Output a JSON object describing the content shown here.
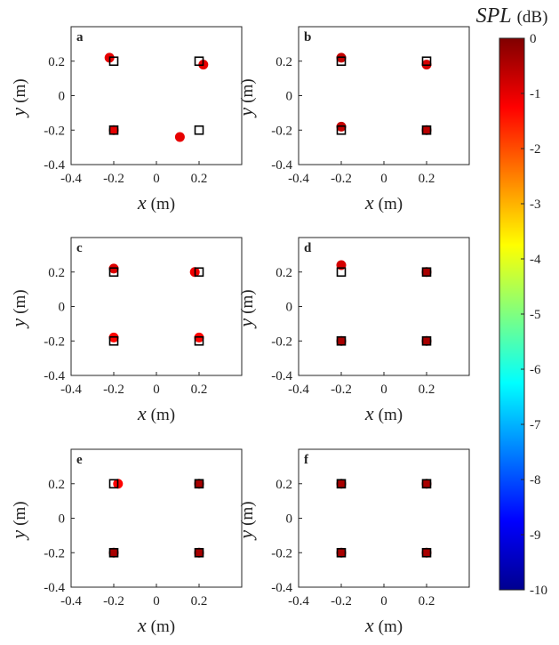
{
  "chart_data": {
    "type": "scatter",
    "panels": [
      {
        "label": "a",
        "xlabel": "x",
        "xunit": "(m)",
        "ylabel": "y",
        "yunit": "(m)",
        "xlim": [
          -0.4,
          0.4
        ],
        "ylim": [
          -0.4,
          0.4
        ],
        "xticks": [
          -0.4,
          -0.2,
          0,
          0.2
        ],
        "yticks": [
          -0.4,
          -0.2,
          0,
          0.2
        ],
        "squares": [
          [
            -0.2,
            0.2
          ],
          [
            0.2,
            0.2
          ],
          [
            -0.2,
            -0.2
          ],
          [
            0.2,
            -0.2
          ]
        ],
        "circles": [
          {
            "x": -0.22,
            "y": 0.22,
            "spl": -0.7
          },
          {
            "x": 0.22,
            "y": 0.18,
            "spl": -0.7
          },
          {
            "x": -0.2,
            "y": -0.2,
            "spl": -0.7
          },
          {
            "x": 0.11,
            "y": -0.24,
            "spl": -0.7
          }
        ]
      },
      {
        "label": "b",
        "xlabel": "x",
        "xunit": "(m)",
        "ylabel": "y",
        "yunit": "(m)",
        "xlim": [
          -0.4,
          0.4
        ],
        "ylim": [
          -0.4,
          0.4
        ],
        "xticks": [
          -0.4,
          -0.2,
          0,
          0.2
        ],
        "yticks": [
          -0.4,
          -0.2,
          0,
          0.2
        ],
        "squares": [
          [
            -0.2,
            0.2
          ],
          [
            0.2,
            0.2
          ],
          [
            -0.2,
            -0.2
          ],
          [
            0.2,
            -0.2
          ]
        ],
        "circles": [
          {
            "x": -0.2,
            "y": 0.22,
            "spl": -0.3
          },
          {
            "x": 0.2,
            "y": 0.18,
            "spl": -0.5
          },
          {
            "x": -0.2,
            "y": -0.18,
            "spl": -0.3
          },
          {
            "x": 0.2,
            "y": -0.2,
            "spl": -0.2
          }
        ]
      },
      {
        "label": "c",
        "xlabel": "x",
        "xunit": "(m)",
        "ylabel": "y",
        "yunit": "(m)",
        "xlim": [
          -0.4,
          0.4
        ],
        "ylim": [
          -0.4,
          0.4
        ],
        "xticks": [
          -0.4,
          -0.2,
          0,
          0.2
        ],
        "yticks": [
          -0.4,
          -0.2,
          0,
          0.2
        ],
        "squares": [
          [
            -0.2,
            0.2
          ],
          [
            0.2,
            0.2
          ],
          [
            -0.2,
            -0.2
          ],
          [
            0.2,
            -0.2
          ]
        ],
        "circles": [
          {
            "x": -0.2,
            "y": 0.22,
            "spl": -0.6
          },
          {
            "x": 0.18,
            "y": 0.2,
            "spl": -0.8
          },
          {
            "x": -0.2,
            "y": -0.18,
            "spl": -1.0
          },
          {
            "x": 0.2,
            "y": -0.18,
            "spl": -1.0
          }
        ]
      },
      {
        "label": "d",
        "xlabel": "x",
        "xunit": "(m)",
        "ylabel": "y",
        "yunit": "(m)",
        "xlim": [
          -0.4,
          0.4
        ],
        "ylim": [
          -0.4,
          0.4
        ],
        "xticks": [
          -0.4,
          -0.2,
          0,
          0.2
        ],
        "yticks": [
          -0.4,
          -0.2,
          0,
          0.2
        ],
        "squares": [
          [
            -0.2,
            0.2
          ],
          [
            0.2,
            0.2
          ],
          [
            -0.2,
            -0.2
          ],
          [
            0.2,
            -0.2
          ]
        ],
        "circles": [
          {
            "x": -0.2,
            "y": 0.24,
            "spl": -0.5
          },
          {
            "x": 0.2,
            "y": 0.2,
            "spl": 0
          },
          {
            "x": -0.2,
            "y": -0.2,
            "spl": 0
          },
          {
            "x": 0.2,
            "y": -0.2,
            "spl": 0
          }
        ]
      },
      {
        "label": "e",
        "xlabel": "x",
        "xunit": "(m)",
        "ylabel": "y",
        "yunit": "(m)",
        "xlim": [
          -0.4,
          0.4
        ],
        "ylim": [
          -0.4,
          0.4
        ],
        "xticks": [
          -0.4,
          -0.2,
          0,
          0.2
        ],
        "yticks": [
          -0.4,
          -0.2,
          0,
          0.2
        ],
        "squares": [
          [
            -0.2,
            0.2
          ],
          [
            0.2,
            0.2
          ],
          [
            -0.2,
            -0.2
          ],
          [
            0.2,
            -0.2
          ]
        ],
        "circles": [
          {
            "x": -0.18,
            "y": 0.2,
            "spl": -1.0
          },
          {
            "x": 0.2,
            "y": 0.2,
            "spl": 0
          },
          {
            "x": -0.2,
            "y": -0.2,
            "spl": 0
          },
          {
            "x": 0.2,
            "y": -0.2,
            "spl": 0
          }
        ]
      },
      {
        "label": "f",
        "xlabel": "x",
        "xunit": "(m)",
        "ylabel": "y",
        "yunit": "(m)",
        "xlim": [
          -0.4,
          0.4
        ],
        "ylim": [
          -0.4,
          0.4
        ],
        "xticks": [
          -0.4,
          -0.2,
          0,
          0.2
        ],
        "yticks": [
          -0.4,
          -0.2,
          0,
          0.2
        ],
        "squares": [
          [
            -0.2,
            0.2
          ],
          [
            0.2,
            0.2
          ],
          [
            -0.2,
            -0.2
          ],
          [
            0.2,
            -0.2
          ]
        ],
        "circles": [
          {
            "x": -0.2,
            "y": 0.2,
            "spl": 0
          },
          {
            "x": 0.2,
            "y": 0.2,
            "spl": 0
          },
          {
            "x": -0.2,
            "y": -0.2,
            "spl": 0
          },
          {
            "x": 0.2,
            "y": -0.2,
            "spl": 0
          }
        ]
      }
    ],
    "colorbar": {
      "title": "SPL",
      "unit": "(dB)",
      "range": [
        -10,
        0
      ],
      "ticks": [
        0,
        -1,
        -2,
        -3,
        -4,
        -5,
        -6,
        -7,
        -8,
        -9,
        -10
      ],
      "colormap": "jet"
    }
  },
  "colors": {
    "square_edge": "#000000",
    "square_fill": "#ffffff",
    "axes": "#262626"
  }
}
